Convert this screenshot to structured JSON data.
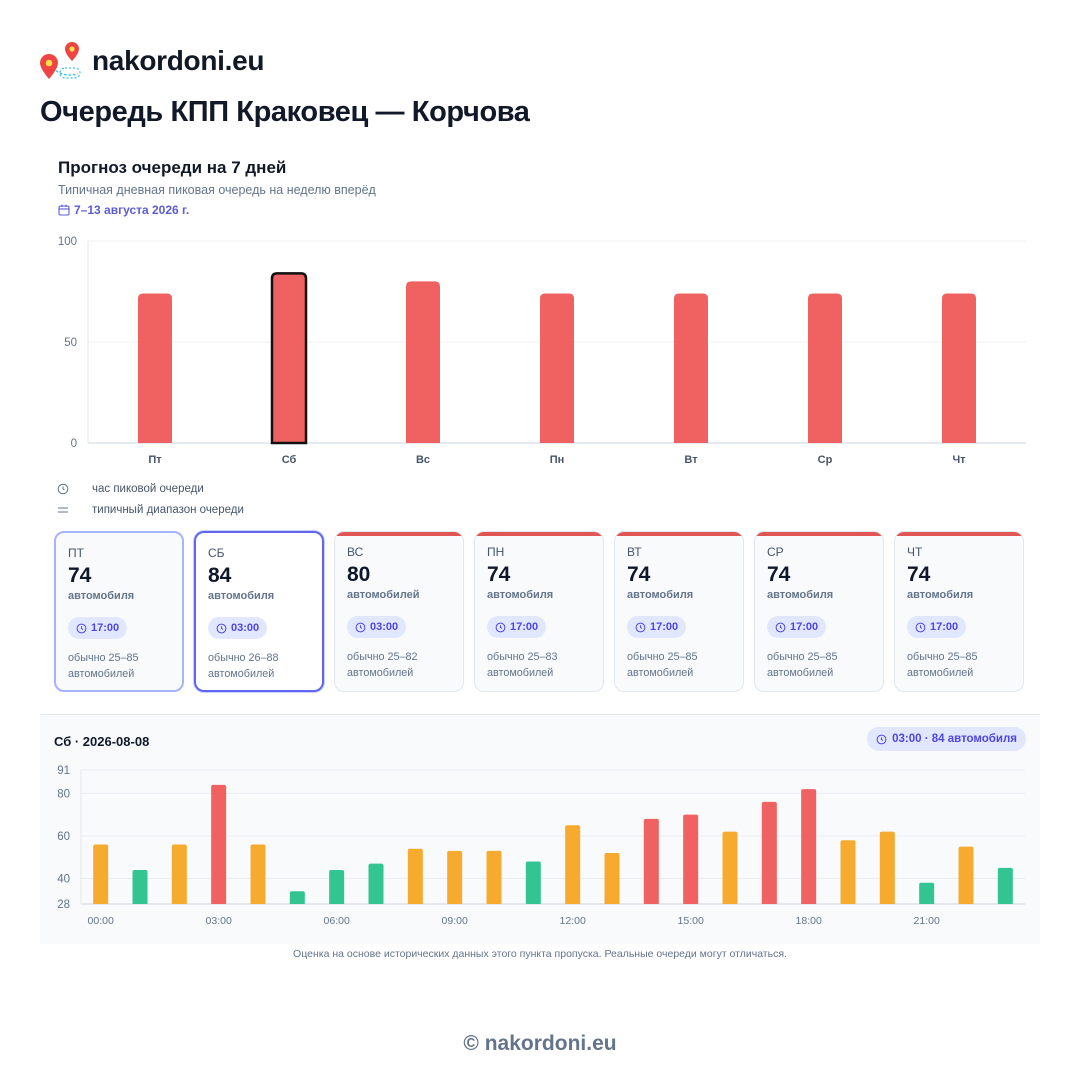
{
  "brand": {
    "name": "nakordoni.eu",
    "icon": "map-pins-logo"
  },
  "page_title": "Очередь КПП Краковец — Корчова",
  "forecast": {
    "title": "Прогноз очереди на 7 дней",
    "subtitle": "Типичная дневная пиковая очередь на неделю вперёд",
    "dates": "7–13 августа 2026 г."
  },
  "legend": {
    "peak_hour": "час пиковой очереди",
    "typical_range": "типичный диапазон очереди"
  },
  "colors": {
    "high": "#f06262",
    "medium": "#f6ab2f",
    "low": "#33c591",
    "accent": "#5b5bd6"
  },
  "days": [
    {
      "code": "ПТ",
      "value": "74",
      "unit": "автомобиля",
      "peak": "17:00",
      "range": "обычно 25–85 автомобилей"
    },
    {
      "code": "СБ",
      "value": "84",
      "unit": "автомобиля",
      "peak": "03:00",
      "range": "обычно 26–88 автомобилей"
    },
    {
      "code": "ВС",
      "value": "80",
      "unit": "автомобилей",
      "peak": "03:00",
      "range": "обычно 25–82 автомобилей"
    },
    {
      "code": "ПН",
      "value": "74",
      "unit": "автомобиля",
      "peak": "17:00",
      "range": "обычно 25–83 автомобилей"
    },
    {
      "code": "ВТ",
      "value": "74",
      "unit": "автомобиля",
      "peak": "17:00",
      "range": "обычно 25–85 автомобилей"
    },
    {
      "code": "СР",
      "value": "74",
      "unit": "автомобиля",
      "peak": "17:00",
      "range": "обычно 25–85 автомобилей"
    },
    {
      "code": "ЧТ",
      "value": "74",
      "unit": "автомобиля",
      "peak": "17:00",
      "range": "обычно 25–85 автомобилей"
    }
  ],
  "detail": {
    "title": "Сб · 2026-08-08",
    "badge": "03:00 · 84 автомобиля"
  },
  "disclaimer": "Оценка на основе исторических данных этого пункта пропуска. Реальные очереди могут отличаться.",
  "footer": "© nakordoni.eu",
  "chart_data": [
    {
      "type": "bar",
      "categories": [
        "Пт",
        "Сб",
        "Вс",
        "Пн",
        "Вт",
        "Ср",
        "Чт"
      ],
      "values": [
        74,
        84,
        80,
        74,
        74,
        74,
        74
      ],
      "selected": "Сб",
      "yticks": [
        0,
        50,
        100
      ],
      "ylim": [
        0,
        100
      ],
      "grid": true,
      "title": "",
      "xlabel": "",
      "ylabel": ""
    },
    {
      "type": "bar",
      "categories": [
        "00:00",
        "01:00",
        "02:00",
        "03:00",
        "04:00",
        "05:00",
        "06:00",
        "07:00",
        "08:00",
        "09:00",
        "10:00",
        "11:00",
        "12:00",
        "13:00",
        "14:00",
        "15:00",
        "16:00",
        "17:00",
        "18:00",
        "19:00",
        "20:00",
        "21:00",
        "22:00",
        "23:00"
      ],
      "values": [
        56,
        44,
        56,
        84,
        56,
        34,
        44,
        47,
        54,
        53,
        53,
        48,
        65,
        52,
        68,
        70,
        62,
        76,
        82,
        58,
        62,
        38,
        55,
        45
      ],
      "levels": [
        "medium",
        "low",
        "medium",
        "high",
        "medium",
        "low",
        "low",
        "low",
        "medium",
        "medium",
        "medium",
        "low",
        "medium",
        "medium",
        "high",
        "high",
        "medium",
        "high",
        "high",
        "medium",
        "medium",
        "low",
        "medium",
        "low"
      ],
      "xticks": [
        "00:00",
        "03:00",
        "06:00",
        "09:00",
        "12:00",
        "15:00",
        "18:00",
        "21:00"
      ],
      "yticks": [
        28,
        40,
        60,
        80,
        91
      ],
      "ylim": [
        28,
        91
      ],
      "grid": true,
      "title": "",
      "xlabel": "",
      "ylabel": ""
    }
  ]
}
